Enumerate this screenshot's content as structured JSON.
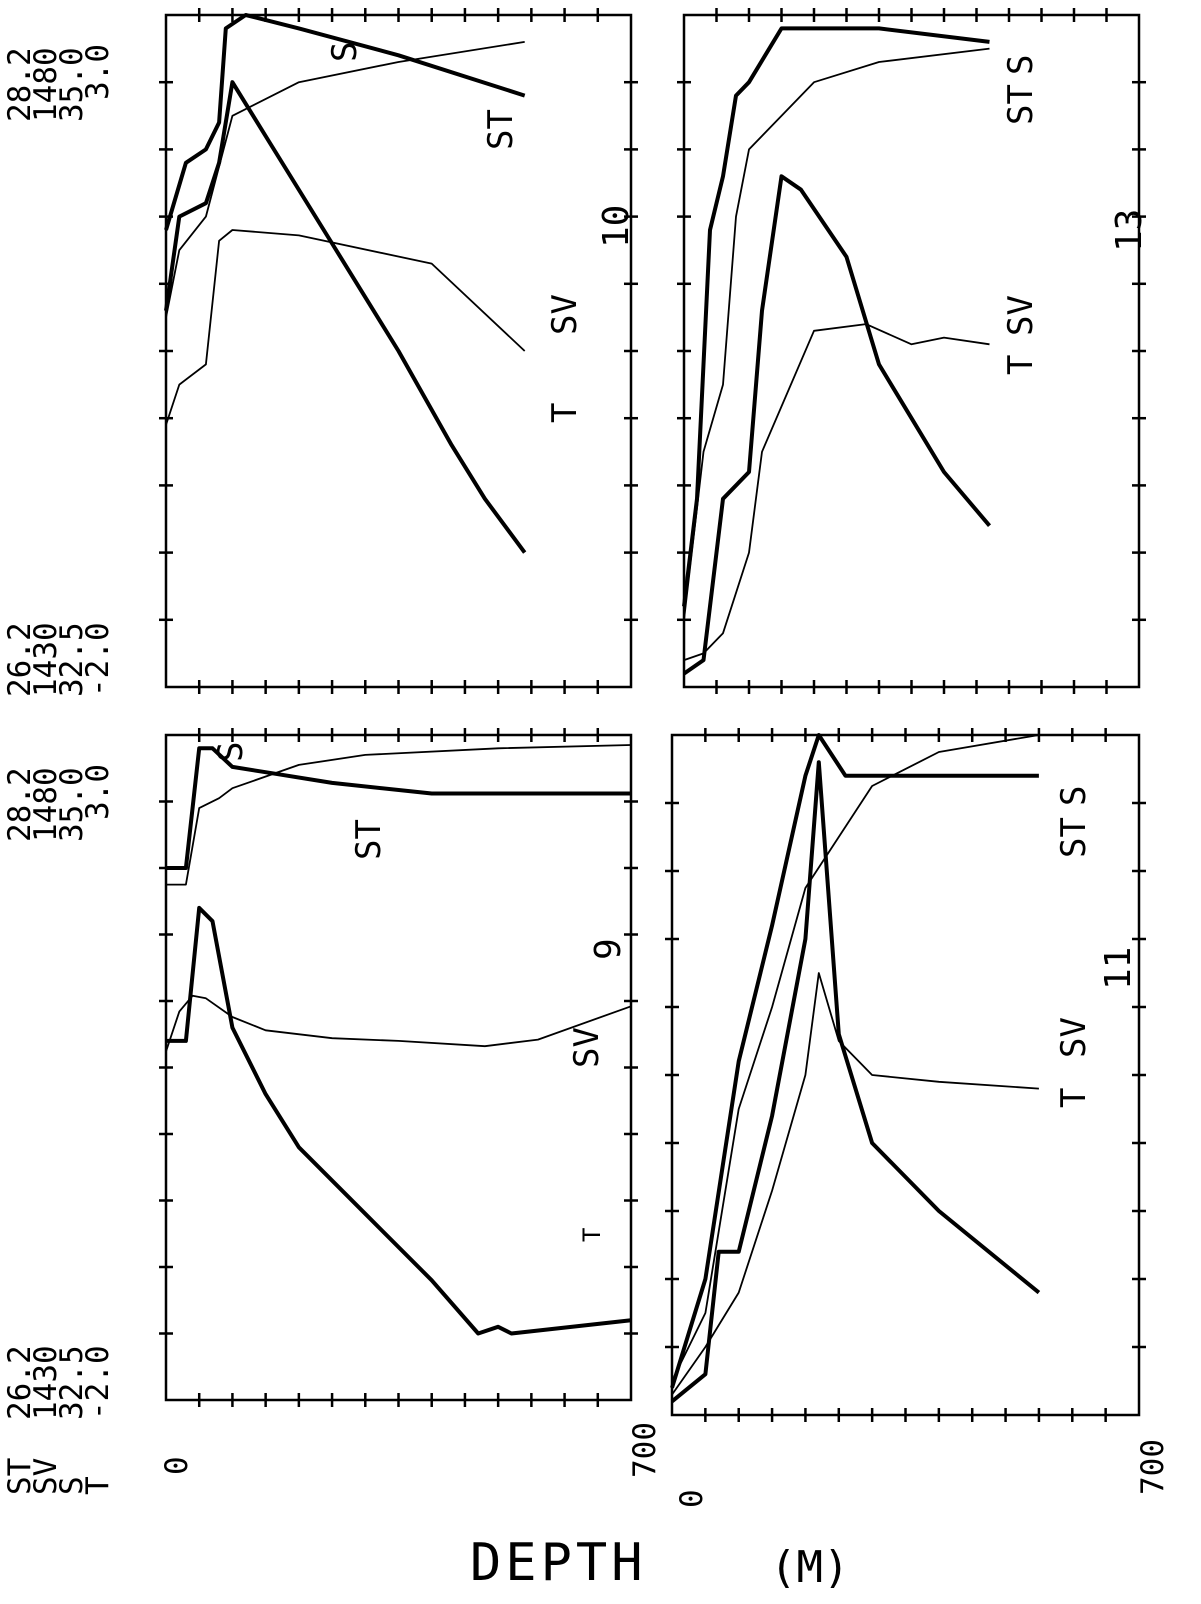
{
  "figure": {
    "depth_label": "DEPTH",
    "unit_label": "(M)",
    "legend_lines": [
      "ST",
      "SV",
      "S",
      "T"
    ],
    "ink_color": "#000000",
    "paper_color": "#ffffff"
  },
  "chart_data": [
    {
      "type": "line",
      "station": "9",
      "x": {
        "label": "DEPTH (M)",
        "ticks_printed": [
          "0",
          "700"
        ],
        "range": [
          0,
          700
        ]
      },
      "scales": {
        "top": [
          "28.2",
          "1480",
          "35.0",
          "3.0"
        ],
        "bottom": [
          "26.2",
          "1430",
          "32.5",
          "-2.0"
        ]
      },
      "ranges": {
        "ST": [
          26.2,
          28.2
        ],
        "SV": [
          1430,
          1480
        ],
        "S": [
          32.5,
          35.0
        ],
        "T": [
          -2.0,
          3.0
        ]
      },
      "series": [
        {
          "name": "S",
          "thick": true,
          "depth": [
            0,
            30,
            50,
            70,
            100,
            150,
            250,
            400,
            700
          ],
          "value": [
            34.5,
            34.5,
            34.95,
            34.95,
            34.88,
            34.86,
            34.82,
            34.78,
            34.78
          ]
        },
        {
          "name": "ST",
          "thick": false,
          "depth": [
            0,
            30,
            50,
            80,
            100,
            200,
            300,
            500,
            700
          ],
          "value": [
            27.75,
            27.75,
            27.98,
            28.01,
            28.04,
            28.11,
            28.14,
            28.16,
            28.17
          ]
        },
        {
          "name": "SV",
          "thick": false,
          "depth": [
            0,
            20,
            40,
            60,
            100,
            150,
            250,
            350,
            480,
            560,
            700
          ],
          "value": [
            1456.2,
            1459.2,
            1460.4,
            1460.2,
            1458.8,
            1457.8,
            1457.2,
            1457.0,
            1456.6,
            1457.1,
            1459.6
          ]
        },
        {
          "name": "T",
          "thick": true,
          "depth": [
            0,
            30,
            50,
            70,
            100,
            150,
            200,
            300,
            400,
            470,
            500,
            520,
            700
          ],
          "value": [
            0.7,
            0.7,
            1.7,
            1.6,
            0.8,
            0.3,
            -0.1,
            -0.6,
            -1.1,
            -1.5,
            -1.45,
            -1.5,
            -1.4
          ]
        }
      ]
    },
    {
      "type": "line",
      "station": "10",
      "x": {
        "label": "DEPTH (M)",
        "ticks_printed": [
          "700"
        ],
        "range": [
          0,
          700
        ]
      },
      "scales": {
        "top": [
          "28.2",
          "1480",
          "35.0",
          "3.0"
        ],
        "bottom": [
          "26.2",
          "1430",
          "32.5",
          "-2.0"
        ]
      },
      "ranges": {
        "ST": [
          26.2,
          28.2
        ],
        "SV": [
          1430,
          1480
        ],
        "S": [
          32.5,
          35.0
        ],
        "T": [
          -2.0,
          3.0
        ]
      },
      "series": [
        {
          "name": "S",
          "thick": true,
          "depth": [
            0,
            30,
            60,
            80,
            90,
            120,
            200,
            350,
            540
          ],
          "value": [
            34.2,
            34.45,
            34.5,
            34.6,
            34.95,
            35.0,
            34.95,
            34.85,
            34.7
          ]
        },
        {
          "name": "ST",
          "thick": false,
          "depth": [
            0,
            20,
            60,
            100,
            200,
            350,
            540
          ],
          "value": [
            27.3,
            27.5,
            27.6,
            27.9,
            28.0,
            28.06,
            28.12
          ]
        },
        {
          "name": "SV",
          "thick": false,
          "depth": [
            0,
            20,
            60,
            80,
            100,
            200,
            400,
            540
          ],
          "value": [
            1449.5,
            1452.5,
            1454.0,
            1463.2,
            1464.0,
            1463.6,
            1461.5,
            1455.0
          ]
        },
        {
          "name": "T",
          "thick": true,
          "depth": [
            0,
            20,
            60,
            80,
            100,
            150,
            250,
            350,
            430,
            480,
            540
          ],
          "value": [
            0.8,
            1.5,
            1.6,
            1.9,
            2.5,
            2.1,
            1.3,
            0.5,
            -0.2,
            -0.6,
            -1.0
          ]
        }
      ]
    },
    {
      "type": "line",
      "station": "11",
      "x": {
        "label": "DEPTH (M)",
        "ticks_printed": [
          "0",
          "700"
        ],
        "range": [
          0,
          700
        ]
      },
      "scales": {},
      "ranges": {
        "ST": [
          26.2,
          28.2
        ],
        "SV": [
          1430,
          1480
        ],
        "S": [
          32.5,
          35.0
        ],
        "T": [
          -2.0,
          3.0
        ]
      },
      "series": [
        {
          "name": "S",
          "thick": true,
          "depth": [
            0,
            50,
            100,
            150,
            200,
            220,
            260,
            300,
            550
          ],
          "value": [
            32.6,
            33.0,
            33.8,
            34.3,
            34.85,
            35.0,
            34.85,
            34.85,
            34.85
          ]
        },
        {
          "name": "ST",
          "thick": false,
          "depth": [
            0,
            50,
            100,
            150,
            200,
            300,
            400,
            550
          ],
          "value": [
            26.3,
            26.5,
            27.1,
            27.4,
            27.75,
            28.05,
            28.15,
            28.2
          ]
        },
        {
          "name": "SV",
          "thick": false,
          "depth": [
            0,
            50,
            100,
            150,
            200,
            220,
            250,
            300,
            400,
            550
          ],
          "value": [
            1431.5,
            1435.0,
            1439.0,
            1446.5,
            1455.0,
            1462.5,
            1457.5,
            1455.0,
            1454.5,
            1454.0
          ]
        },
        {
          "name": "T",
          "thick": true,
          "depth": [
            0,
            50,
            70,
            100,
            150,
            200,
            220,
            250,
            300,
            400,
            550
          ],
          "value": [
            -1.9,
            -1.7,
            -0.8,
            -0.8,
            0.2,
            1.5,
            2.8,
            0.8,
            0.0,
            -0.5,
            -1.1
          ]
        }
      ]
    },
    {
      "type": "line",
      "station": "13",
      "x": {
        "label": "DEPTH (M)",
        "ticks_printed": [
          "700"
        ],
        "range": [
          0,
          700
        ]
      },
      "scales": {},
      "ranges": {
        "ST": [
          26.2,
          28.2
        ],
        "SV": [
          1430,
          1480
        ],
        "S": [
          32.5,
          35.0
        ],
        "T": [
          -2.0,
          3.0
        ]
      },
      "series": [
        {
          "name": "S",
          "thick": true,
          "depth": [
            0,
            20,
            40,
            60,
            80,
            100,
            150,
            200,
            300,
            470
          ],
          "value": [
            32.8,
            33.2,
            34.2,
            34.4,
            34.7,
            34.75,
            34.95,
            34.95,
            34.95,
            34.9
          ]
        },
        {
          "name": "ST",
          "thick": false,
          "depth": [
            0,
            30,
            60,
            80,
            100,
            200,
            300,
            470
          ],
          "value": [
            26.4,
            26.9,
            27.1,
            27.6,
            27.8,
            28.0,
            28.06,
            28.1
          ]
        },
        {
          "name": "SV",
          "thick": false,
          "depth": [
            0,
            30,
            60,
            100,
            120,
            200,
            280,
            350,
            400,
            470
          ],
          "value": [
            1432.0,
            1432.5,
            1434.0,
            1440.0,
            1447.5,
            1456.5,
            1457.0,
            1455.5,
            1456.0,
            1455.5
          ]
        },
        {
          "name": "T",
          "thick": true,
          "depth": [
            0,
            30,
            60,
            100,
            120,
            150,
            180,
            250,
            300,
            350,
            400,
            470
          ],
          "value": [
            -1.9,
            -1.8,
            -0.6,
            -0.4,
            0.8,
            1.8,
            1.7,
            1.2,
            0.4,
            0.0,
            -0.4,
            -0.8
          ]
        }
      ]
    }
  ]
}
